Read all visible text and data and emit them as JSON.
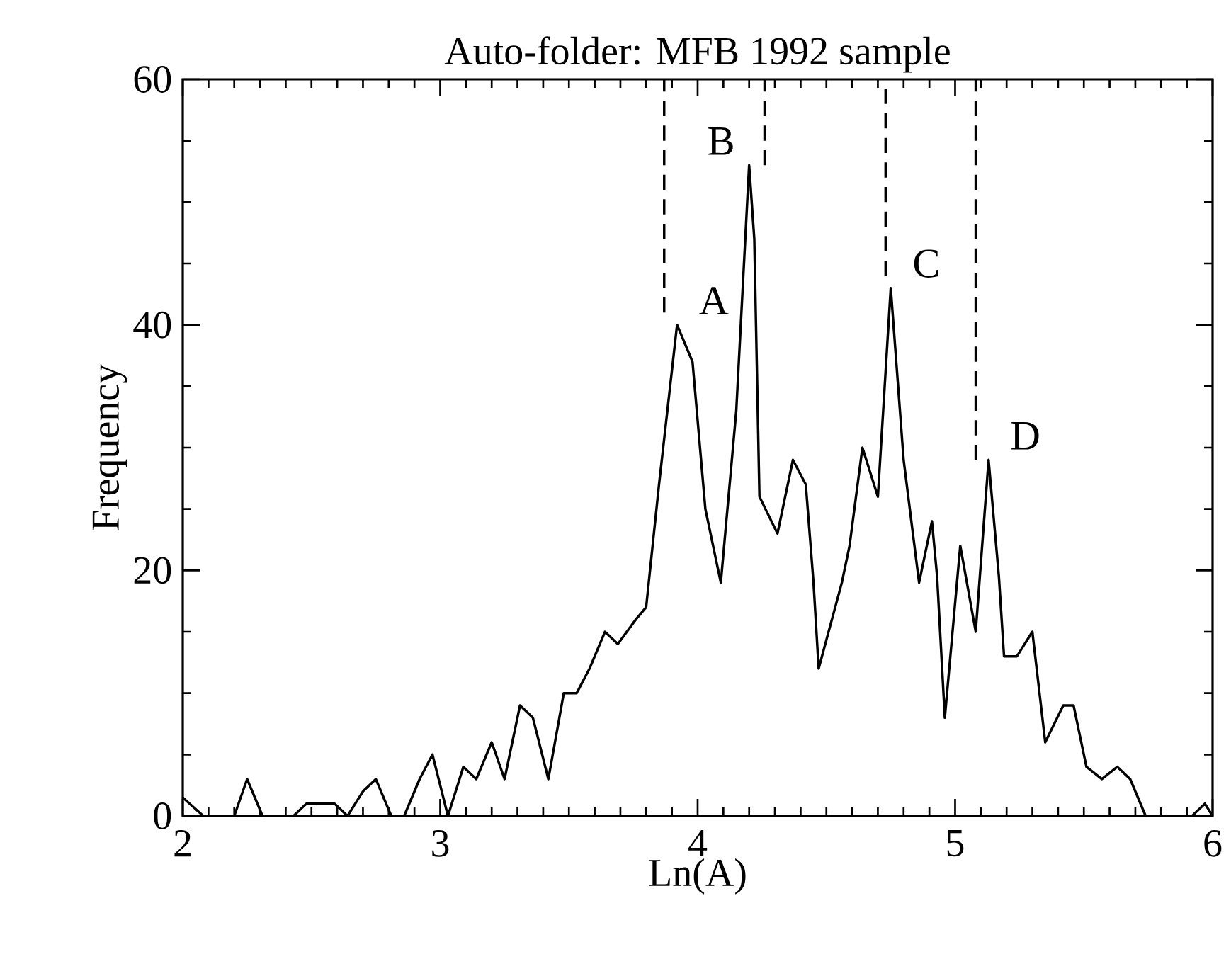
{
  "chart_data": {
    "type": "line",
    "title": "Auto-folder: MFB 1992 sample",
    "xlabel": "Ln(A)",
    "ylabel": "Frequency",
    "xlim": [
      2,
      6
    ],
    "ylim": [
      0,
      60
    ],
    "xticks": [
      2,
      3,
      4,
      5,
      6
    ],
    "yticks": [
      0,
      20,
      40,
      60
    ],
    "series": [
      {
        "color": "#000000",
        "line_style": "solid",
        "x": [
          2.0,
          2.08,
          2.2,
          2.25,
          2.31,
          2.43,
          2.48,
          2.59,
          2.64,
          2.7,
          2.75,
          2.81,
          2.86,
          2.92,
          2.97,
          3.03,
          3.09,
          3.14,
          3.2,
          3.25,
          3.31,
          3.36,
          3.42,
          3.48,
          3.53,
          3.58,
          3.64,
          3.69,
          3.76,
          3.8,
          3.85,
          3.92,
          3.98,
          4.03,
          4.09,
          4.15,
          4.2,
          4.22,
          4.24,
          4.31,
          4.37,
          4.42,
          4.45,
          4.47,
          4.56,
          4.59,
          4.64,
          4.7,
          4.75,
          4.8,
          4.86,
          4.91,
          4.93,
          4.96,
          5.02,
          5.08,
          5.13,
          5.17,
          5.19,
          5.24,
          5.3,
          5.35,
          5.42,
          5.46,
          5.51,
          5.57,
          5.63,
          5.68,
          5.74,
          5.92,
          5.97,
          6.0
        ],
        "values": [
          1.5,
          0,
          0,
          3,
          0,
          0,
          1,
          1,
          0,
          2,
          3,
          0,
          0,
          3,
          5,
          0,
          4,
          3,
          6,
          3,
          9,
          8,
          3,
          10,
          10,
          12,
          15,
          14,
          16,
          17,
          27,
          40,
          37,
          25,
          19,
          33,
          53,
          47,
          26,
          23,
          29,
          27,
          19,
          12,
          19,
          22,
          30,
          26,
          43,
          29,
          19,
          24,
          19.5,
          8,
          22,
          15,
          29,
          19.5,
          13,
          13,
          15,
          6,
          9,
          9,
          4,
          3,
          4,
          3,
          0,
          0,
          1,
          0
        ]
      },
      {
        "color": "#000000",
        "line_style": "dashed",
        "x": [
          3.87,
          3.87
        ],
        "values": [
          41,
          60
        ]
      },
      {
        "color": "#000000",
        "line_style": "dashed",
        "x": [
          4.26,
          4.26
        ],
        "values": [
          53,
          60
        ]
      },
      {
        "color": "#000000",
        "line_style": "dashed",
        "x": [
          4.73,
          4.73
        ],
        "values": [
          44,
          60
        ]
      },
      {
        "color": "#000000",
        "line_style": "dashed",
        "x": [
          5.08,
          5.08
        ],
        "values": [
          29,
          60
        ]
      }
    ],
    "annotations": [
      {
        "text": "A",
        "x": 3.92,
        "y": 40
      },
      {
        "text": "B",
        "x": 4.2,
        "y": 53
      },
      {
        "text": "C",
        "x": 4.75,
        "y": 43
      },
      {
        "text": "D",
        "x": 5.13,
        "y": 29
      }
    ]
  }
}
